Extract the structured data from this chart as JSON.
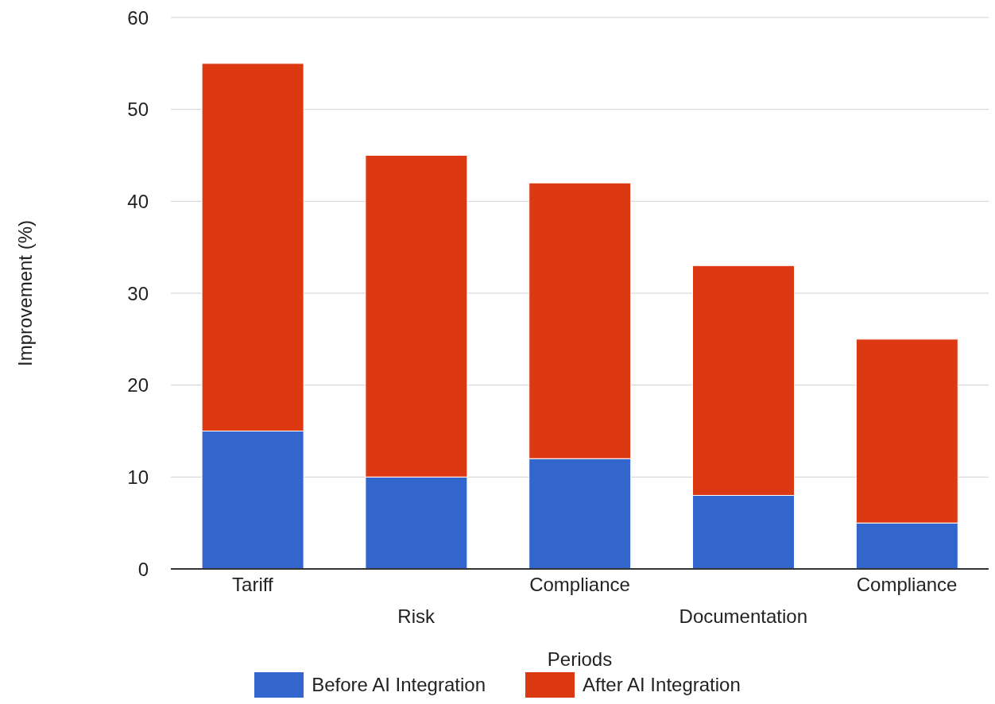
{
  "chart_data": {
    "type": "bar",
    "stacked": true,
    "xlabel": "Periods",
    "ylabel": "Improvement (%)",
    "categories": [
      "Tariff",
      "Risk",
      "Compliance",
      "Documentation",
      "Compliance"
    ],
    "series": [
      {
        "name": "Before AI Integration",
        "color": "#3366cc",
        "values": [
          15,
          10,
          12,
          8,
          5
        ]
      },
      {
        "name": "After AI Integration",
        "color": "#dc3912",
        "values": [
          40,
          35,
          30,
          25,
          20
        ]
      }
    ],
    "ylim": [
      0,
      60
    ],
    "yticks": [
      0,
      10,
      20,
      30,
      40,
      50,
      60
    ],
    "grid": "y",
    "legend": "bottom"
  }
}
